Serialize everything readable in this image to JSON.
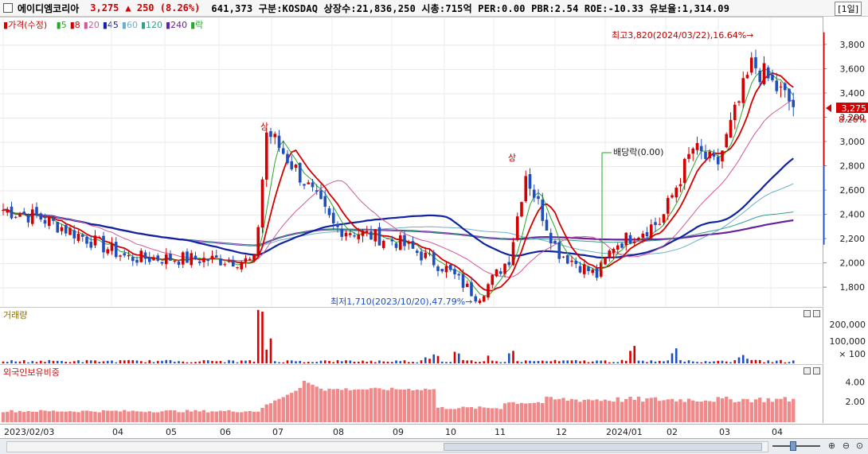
{
  "header": {
    "stock_name": "에이디엠코리아",
    "price": "3,275",
    "change": "▲ 250",
    "change_pct": "(8.26%)",
    "info": "641,373 구분:KOSDAQ 상장수:21,836,250 시총:715억 PER:0.00 PBR:2.54 ROE:-10.33 유보율:1,314.09",
    "period": "[1일]"
  },
  "colors": {
    "up": "#d20000",
    "down": "#1f4fbf",
    "ma5": "#2aa52a",
    "ma8": "#d40000",
    "ma20": "#d3589a",
    "ma45": "#1023a3",
    "ma60": "#6ab0c8",
    "ma120": "#36a08a",
    "ma240": "#6a1fa0",
    "volume": "#d80000",
    "foreign": "#f08a8a"
  },
  "price_panel": {
    "legend_prefix": "가격(수정)",
    "legend": [
      {
        "label": "5",
        "color": "#2aa52a"
      },
      {
        "label": "8",
        "color": "#d40000"
      },
      {
        "label": "20",
        "color": "#d3589a"
      },
      {
        "label": "45",
        "color": "#1023a3"
      },
      {
        "label": "60",
        "color": "#6ab0c8"
      },
      {
        "label": "120",
        "color": "#36a08a"
      },
      {
        "label": "240",
        "color": "#6a1fa0"
      }
    ],
    "legend_suffix": "락",
    "y_ticks": [
      "3,800",
      "3,600",
      "3,400",
      "3,200",
      "3,000",
      "2,800",
      "2,600",
      "2,400",
      "2,200",
      "2,000",
      "1,800"
    ],
    "ylim": [
      1670,
      3950
    ],
    "current_price_label": "3,275",
    "current_pct_label": "8.26%",
    "annotations": {
      "high": "최고3,820(2024/03/22),16.64%→",
      "low": "최저1,710(2023/10/20),47.79%→",
      "dividend": "배당락(0.00)",
      "limit_up_1": "상",
      "limit_up_2": "상"
    }
  },
  "volume_panel": {
    "label": "거래량",
    "y_ticks": [
      "200,000",
      "100,000",
      "× 100"
    ]
  },
  "foreign_panel": {
    "label": "외국인보유비중",
    "y_ticks": [
      "4.00",
      "2.00"
    ]
  },
  "x_axis": {
    "labels": [
      "2023/02/03",
      "04",
      "05",
      "06",
      "07",
      "08",
      "09",
      "10",
      "11",
      "12",
      "2024/01",
      "02",
      "03",
      "04"
    ]
  },
  "chart_data": {
    "type": "candlestick",
    "title": "에이디엠코리아",
    "x_range": [
      "2023/02/03",
      "2024/04"
    ],
    "ylim": [
      1670,
      3950
    ],
    "price_anchors": [
      {
        "date": "2023/02/03",
        "close": 2500
      },
      {
        "date": "2023/03",
        "close": 2250
      },
      {
        "date": "2023/04",
        "close": 2050
      },
      {
        "date": "2023/05",
        "close": 2050
      },
      {
        "date": "2023/06",
        "close": 2000
      },
      {
        "date": "2023/06 late",
        "close": 3100
      },
      {
        "date": "2023/07",
        "close": 2700
      },
      {
        "date": "2023/08",
        "close": 2300
      },
      {
        "date": "2023/09",
        "close": 2150
      },
      {
        "date": "2023/10/20",
        "close": 1710
      },
      {
        "date": "2023/11",
        "close": 2800
      },
      {
        "date": "2023/12",
        "close": 1930
      },
      {
        "date": "2024/01",
        "close": 2200
      },
      {
        "date": "2024/02",
        "close": 2900
      },
      {
        "date": "2024/03/22",
        "close": 3820
      },
      {
        "date": "2024/04",
        "close": 3275
      }
    ],
    "moving_averages": [
      "5",
      "8",
      "20",
      "45",
      "60",
      "120",
      "240"
    ],
    "last_close": 3275,
    "change": 250,
    "change_pct": 8.26
  }
}
